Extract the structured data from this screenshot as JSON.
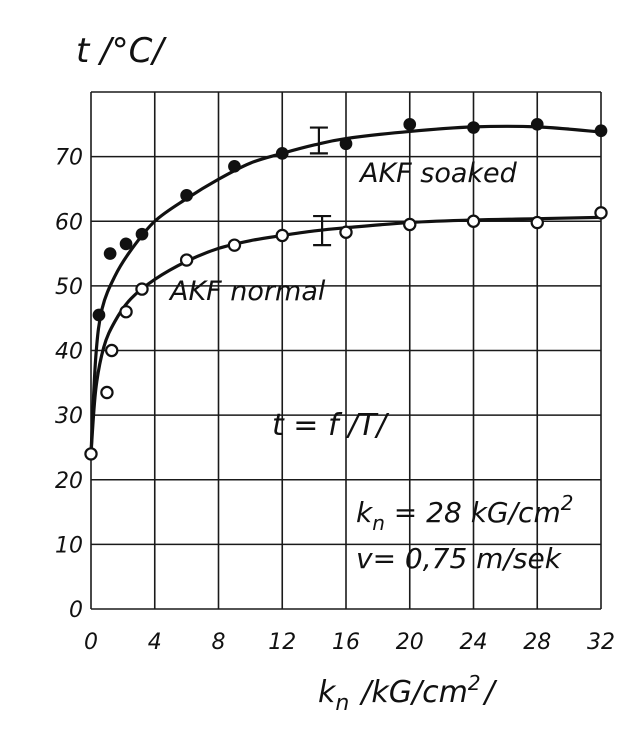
{
  "chart_data": {
    "type": "line",
    "ylabel": "t /°C/",
    "xlabel_main": "k",
    "xlabel_sub": "n",
    "xlabel_unit": "/kG/cm",
    "xlabel_sup": "2",
    "xlabel_close": "/",
    "xlim": [
      0,
      32
    ],
    "ylim": [
      0,
      80
    ],
    "xticks": [
      "0",
      "4",
      "8",
      "12",
      "16",
      "20",
      "24",
      "28",
      "32"
    ],
    "yticks": [
      "0",
      "10",
      "20",
      "30",
      "40",
      "50",
      "60",
      "70"
    ],
    "grid": true,
    "series": [
      {
        "name": "AKF soaked",
        "marker": "filled",
        "points": [
          [
            0.5,
            45.5
          ],
          [
            1.2,
            55
          ],
          [
            2.2,
            56.5
          ],
          [
            3.2,
            58
          ],
          [
            6,
            64
          ],
          [
            9,
            68.5
          ],
          [
            12,
            70.5
          ],
          [
            16,
            72
          ],
          [
            20,
            75
          ],
          [
            24,
            74.5
          ],
          [
            28,
            75
          ],
          [
            32,
            74
          ]
        ],
        "curve": [
          [
            0,
            24
          ],
          [
            0.3,
            39
          ],
          [
            0.7,
            46.5
          ],
          [
            1.5,
            51.5
          ],
          [
            2.5,
            55.5
          ],
          [
            4,
            60
          ],
          [
            6,
            63.5
          ],
          [
            8,
            66.5
          ],
          [
            10,
            69
          ],
          [
            12,
            70.5
          ],
          [
            14,
            71.8
          ],
          [
            16,
            72.8
          ],
          [
            20,
            73.9
          ],
          [
            24,
            74.6
          ],
          [
            28,
            74.6
          ],
          [
            32,
            73.8
          ]
        ],
        "error_bar": {
          "x": 14.3,
          "y_low": 70.5,
          "y_high": 74.5
        }
      },
      {
        "name": "AKF normal",
        "marker": "open",
        "points": [
          [
            0,
            24
          ],
          [
            1,
            33.5
          ],
          [
            1.3,
            40
          ],
          [
            2.2,
            46
          ],
          [
            3.2,
            49.5
          ],
          [
            6,
            54
          ],
          [
            9,
            56.3
          ],
          [
            12,
            57.8
          ],
          [
            16,
            58.3
          ],
          [
            20,
            59.5
          ],
          [
            24,
            60
          ],
          [
            28,
            59.8
          ],
          [
            32,
            61.3
          ]
        ],
        "curve": [
          [
            0,
            24
          ],
          [
            0.3,
            34
          ],
          [
            0.8,
            40.5
          ],
          [
            1.5,
            44.5
          ],
          [
            2.5,
            48
          ],
          [
            4,
            51
          ],
          [
            6,
            53.8
          ],
          [
            8,
            55.8
          ],
          [
            10,
            57
          ],
          [
            12,
            57.8
          ],
          [
            14,
            58.5
          ],
          [
            16,
            59
          ],
          [
            20,
            59.8
          ],
          [
            24,
            60.2
          ],
          [
            28,
            60.4
          ],
          [
            32,
            60.6
          ]
        ],
        "error_bar": {
          "x": 14.5,
          "y_low": 56.3,
          "y_high": 60.8
        }
      }
    ],
    "annotations": {
      "soaked_label": "AKF soaked",
      "normal_label": "AKF normal",
      "func_label": "t = f /T/",
      "param1_main": "k",
      "param1_sub": "n",
      "param1_rest": " = 28 kG/cm",
      "param1_sup": "2",
      "param2": "v= 0,75 m/sek"
    }
  }
}
